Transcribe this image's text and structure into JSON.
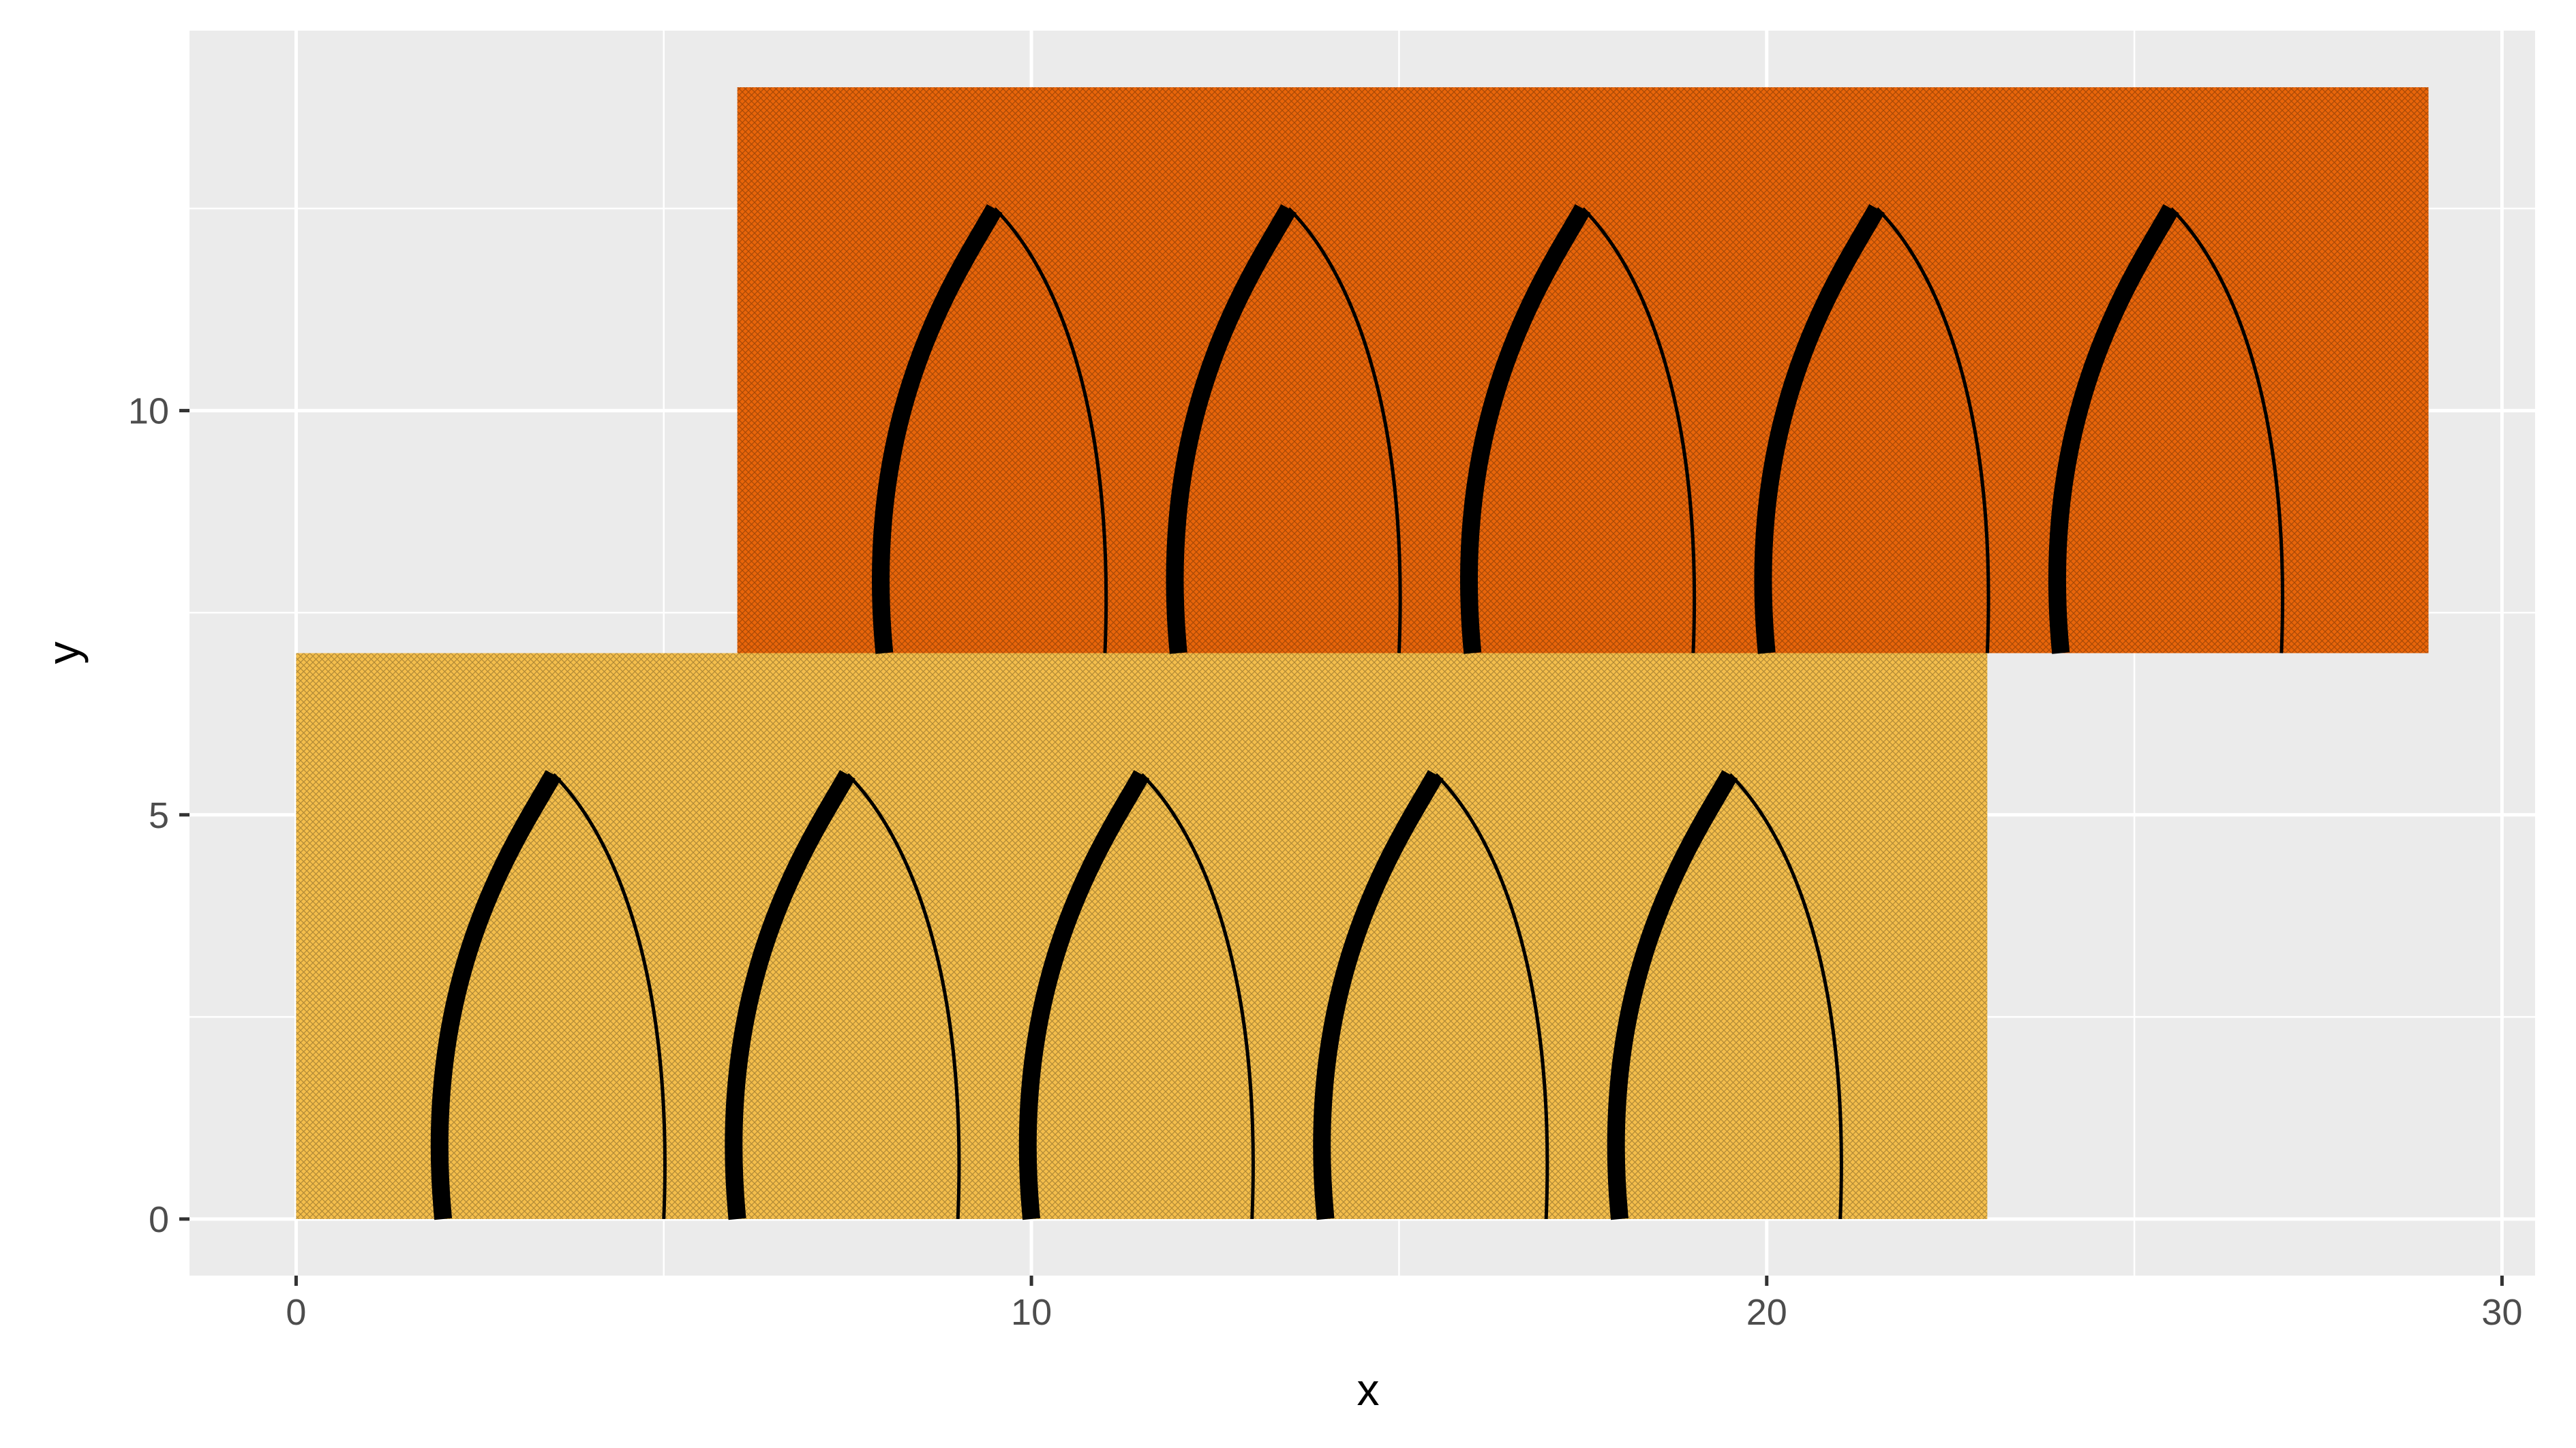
{
  "chart_data": {
    "type": "rect-and-curve",
    "xlabel": "x",
    "ylabel": "y",
    "xlim": [
      -1.45,
      30.45
    ],
    "ylim": [
      -0.7,
      14.7
    ],
    "x_ticks": [
      0,
      10,
      20,
      30
    ],
    "y_ticks": [
      0,
      5,
      10
    ],
    "grid": true,
    "legend": "none",
    "rects": [
      {
        "xmin": 0,
        "xmax": 23,
        "ymin": 0,
        "ymax": 7,
        "fill": "#F4BE4C",
        "pattern": "crosshatch"
      },
      {
        "xmin": 6,
        "xmax": 29,
        "ymin": 7,
        "ymax": 14,
        "fill": "#E8650A",
        "pattern": "crosshatch"
      }
    ],
    "curves": [
      {
        "x0": 2,
        "y0": 0,
        "x1": 3.5,
        "y1": 5.5,
        "x2": 5,
        "y2": 0
      },
      {
        "x0": 6,
        "y0": 0,
        "x1": 7.5,
        "y1": 5.5,
        "x2": 9,
        "y2": 0
      },
      {
        "x0": 10,
        "y0": 0,
        "x1": 11.5,
        "y1": 5.5,
        "x2": 13,
        "y2": 0
      },
      {
        "x0": 14,
        "y0": 0,
        "x1": 15.5,
        "y1": 5.5,
        "x2": 17,
        "y2": 0
      },
      {
        "x0": 18,
        "y0": 0,
        "x1": 19.5,
        "y1": 5.5,
        "x2": 21,
        "y2": 0
      },
      {
        "x0": 8,
        "y0": 7,
        "x1": 9.5,
        "y1": 12.5,
        "x2": 11,
        "y2": 7
      },
      {
        "x0": 12,
        "y0": 7,
        "x1": 13.5,
        "y1": 12.5,
        "x2": 15,
        "y2": 7
      },
      {
        "x0": 16,
        "y0": 7,
        "x1": 17.5,
        "y1": 12.5,
        "x2": 19,
        "y2": 7
      },
      {
        "x0": 20,
        "y0": 7,
        "x1": 21.5,
        "y1": 12.5,
        "x2": 23,
        "y2": 7
      },
      {
        "x0": 24,
        "y0": 7,
        "x1": 25.5,
        "y1": 12.5,
        "x2": 27,
        "y2": 7
      }
    ],
    "colors": {
      "panel_background": "#EBEBEB",
      "grid_major": "#FFFFFF",
      "curve": "#000000"
    }
  }
}
